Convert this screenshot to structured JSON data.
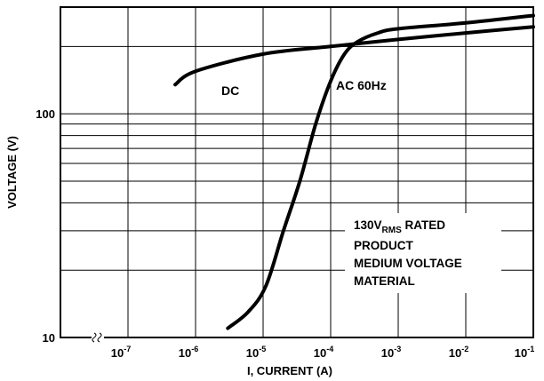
{
  "chart_data": {
    "type": "line",
    "title": "",
    "xlabel": "I, CURRENT (A)",
    "ylabel": "VOLTAGE (V)",
    "x_scale": "log",
    "y_scale": "log",
    "xlim": [
      1e-08,
      0.1
    ],
    "ylim": [
      10,
      300
    ],
    "grid": true,
    "x_ticks": [
      {
        "value": 1e-07,
        "base": "10",
        "exp": "-7"
      },
      {
        "value": 1e-06,
        "base": "10",
        "exp": "-6"
      },
      {
        "value": 1e-05,
        "base": "10",
        "exp": "-5"
      },
      {
        "value": 0.0001,
        "base": "10",
        "exp": "-4"
      },
      {
        "value": 0.001,
        "base": "10",
        "exp": "-3"
      },
      {
        "value": 0.01,
        "base": "10",
        "exp": "-2"
      },
      {
        "value": 0.1,
        "base": "10",
        "exp": "-1"
      }
    ],
    "y_ticks": [
      {
        "value": 10,
        "label": "10"
      },
      {
        "value": 100,
        "label": "100"
      }
    ],
    "series": [
      {
        "name": "DC",
        "points": [
          [
            5e-07,
            135
          ],
          [
            1e-06,
            155
          ],
          [
            1e-05,
            185
          ],
          [
            0.0001,
            200
          ],
          [
            0.001,
            215
          ],
          [
            0.01,
            230
          ],
          [
            0.1,
            245
          ]
        ]
      },
      {
        "name": "AC 60Hz",
        "points": [
          [
            3e-06,
            11
          ],
          [
            6e-06,
            13
          ],
          [
            1.1e-05,
            17
          ],
          [
            2e-05,
            30
          ],
          [
            3.5e-05,
            50
          ],
          [
            6e-05,
            90
          ],
          [
            0.0001,
            140
          ],
          [
            0.00016,
            185
          ],
          [
            0.00025,
            210
          ],
          [
            0.0005,
            230
          ],
          [
            0.001,
            240
          ],
          [
            0.01,
            255
          ],
          [
            0.1,
            275
          ]
        ]
      }
    ],
    "annotation": {
      "line1_main": "130V",
      "line1_sub": "RMS",
      "line1_rest": " RATED",
      "line2": "PRODUCT",
      "line3": "MEDIUM VOLTAGE",
      "line4": "MATERIAL"
    }
  }
}
